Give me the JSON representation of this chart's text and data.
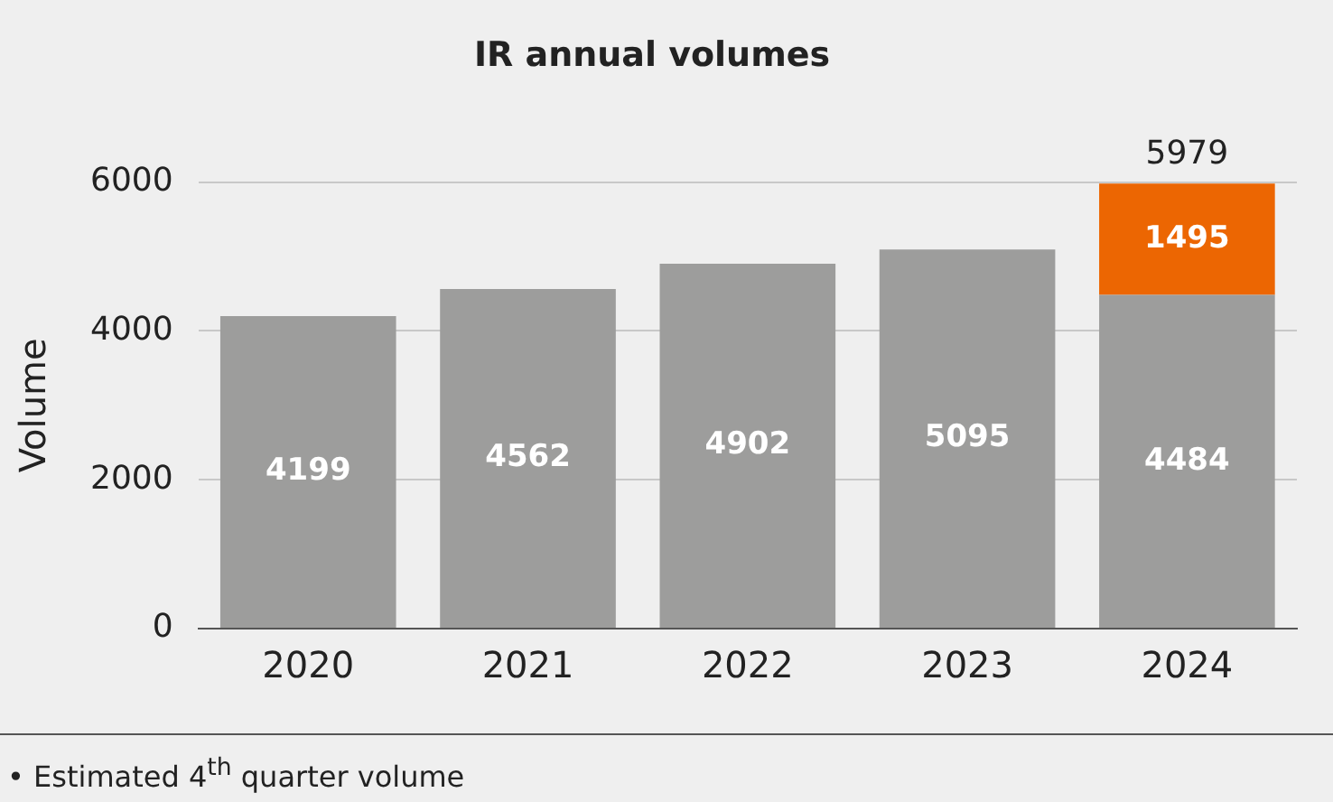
{
  "chart_data": {
    "type": "bar",
    "title": "IR annual volumes",
    "ylabel": "Volume",
    "categories": [
      "2020",
      "2021",
      "2022",
      "2023",
      "2024"
    ],
    "series": [
      {
        "color": "#9d9d9c",
        "values": [
          4199,
          4562,
          4902,
          5095,
          4484
        ]
      },
      {
        "color": "#ec6602",
        "values": [
          null,
          null,
          null,
          null,
          1495
        ]
      }
    ],
    "stacked": true,
    "data_labels": true,
    "totals": [
      null,
      null,
      null,
      null,
      "5979"
    ],
    "ylim": [
      0,
      6000
    ],
    "yticks": [
      0,
      2000,
      4000,
      6000
    ],
    "grid": "y",
    "legend": false,
    "annotations": [
      "• Estimated 4$^{th}$ quarter volume"
    ]
  }
}
